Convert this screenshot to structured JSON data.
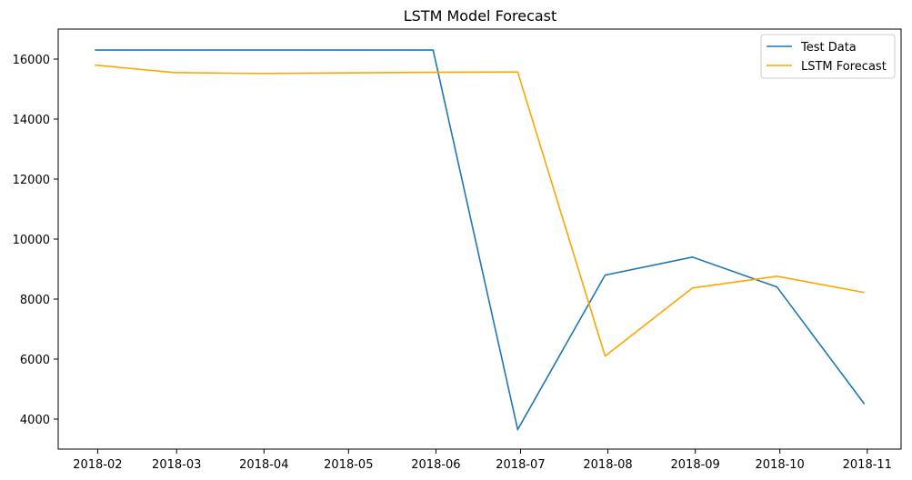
{
  "chart_data": {
    "type": "line",
    "title": "LSTM Model Forecast",
    "xlabel": "",
    "ylabel": "",
    "x": [
      "2018-01-31",
      "2018-02-28",
      "2018-03-31",
      "2018-04-30",
      "2018-05-31",
      "2018-06-30",
      "2018-07-31",
      "2018-08-31",
      "2018-09-30",
      "2018-10-31"
    ],
    "x_ticks": [
      "2018-02",
      "2018-03",
      "2018-04",
      "2018-05",
      "2018-06",
      "2018-07",
      "2018-08",
      "2018-09",
      "2018-10",
      "2018-11"
    ],
    "y_ticks": [
      4000,
      6000,
      8000,
      10000,
      12000,
      14000,
      16000
    ],
    "ylim": [
      3000,
      17000
    ],
    "xlim": [
      "2018-01-18",
      "2018-11-13"
    ],
    "series": [
      {
        "name": "Test Data",
        "color": "#1f77b4",
        "values": [
          16300,
          16300,
          16300,
          16300,
          16300,
          3650,
          8800,
          9400,
          8400,
          4500
        ]
      },
      {
        "name": "LSTM Forecast",
        "color": "#ffa500",
        "values": [
          15800,
          15550,
          15520,
          15540,
          15560,
          15570,
          6100,
          8370,
          8760,
          8220
        ]
      }
    ],
    "legend": {
      "position": "top-right",
      "entries": [
        "Test Data",
        "LSTM Forecast"
      ]
    },
    "grid": false
  }
}
